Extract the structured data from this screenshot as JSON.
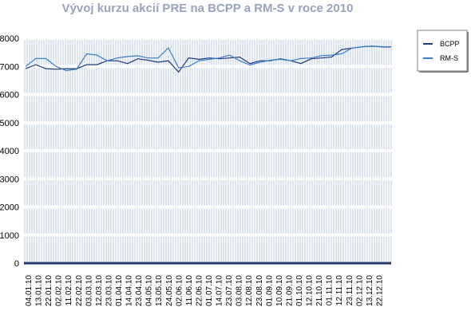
{
  "chart_data": {
    "type": "line",
    "title": "Vývoj kurzu akcií PRE na BCPP a RM-S v roce 2010",
    "xlabel": "",
    "ylabel": "",
    "ylim": [
      0,
      8000
    ],
    "yticks": [
      0,
      1000,
      2000,
      3000,
      4000,
      5000,
      6000,
      7000,
      8000
    ],
    "grid": "vertical",
    "legend_position": "right",
    "x_tick_labels": [
      "04.01.10",
      "13.01.10",
      "22.01.10",
      "02.02.10",
      "11.02.10",
      "22.02.10",
      "03.03.10",
      "12.03.10",
      "23.03.10",
      "01.04.10",
      "14.04.10",
      "23.04.10",
      "04.05.10",
      "13.05.10",
      "24.05.10",
      "02.06.10",
      "11.06.10",
      "22.06.10",
      "01.07.10",
      "14.07.10",
      "23.07.10",
      "03.08.10",
      "12.08.10",
      "23.08.10",
      "01.09.10",
      "10.09.10",
      "21.09.10",
      "01.10.10",
      "12.10.10",
      "21.10.10",
      "01.11.10",
      "12.11.10",
      "23.11.10",
      "02.12.10",
      "13.12.10",
      "22.12.10"
    ],
    "x_end_label": "",
    "x": [
      "04.01.10",
      "13.01.10",
      "22.01.10",
      "02.02.10",
      "11.02.10",
      "22.02.10",
      "03.03.10",
      "12.03.10",
      "23.03.10",
      "01.04.10",
      "14.04.10",
      "23.04.10",
      "04.05.10",
      "13.05.10",
      "24.05.10",
      "02.06.10",
      "11.06.10",
      "22.06.10",
      "01.07.10",
      "14.07.10",
      "23.07.10",
      "03.08.10",
      "12.08.10",
      "23.08.10",
      "01.09.10",
      "10.09.10",
      "21.09.10",
      "01.10.10",
      "12.10.10",
      "21.10.10",
      "01.11.10",
      "12.11.10",
      "23.11.10",
      "02.12.10",
      "13.12.10",
      "22.12.10"
    ],
    "series": [
      {
        "name": "BCPP",
        "color": "#1f3a7a",
        "values": [
          6920,
          7060,
          6920,
          6900,
          6920,
          6920,
          7060,
          7060,
          7200,
          7200,
          7100,
          7270,
          7220,
          7150,
          7200,
          6800,
          7300,
          7250,
          7300,
          7270,
          7300,
          7330,
          7100,
          7200,
          7200,
          7270,
          7200,
          7100,
          7270,
          7300,
          7330,
          7600,
          7650,
          7700,
          7720,
          7690
        ]
      },
      {
        "name": "RM-S",
        "color": "#3a7cc7",
        "values": [
          7000,
          7280,
          7280,
          7000,
          6850,
          6900,
          7450,
          7400,
          7200,
          7300,
          7350,
          7380,
          7300,
          7300,
          7660,
          6950,
          7000,
          7200,
          7250,
          7300,
          7400,
          7200,
          7050,
          7150,
          7220,
          7250,
          7200,
          7280,
          7300,
          7380,
          7400,
          7450,
          7650,
          7700,
          7720,
          7700
        ]
      }
    ]
  }
}
